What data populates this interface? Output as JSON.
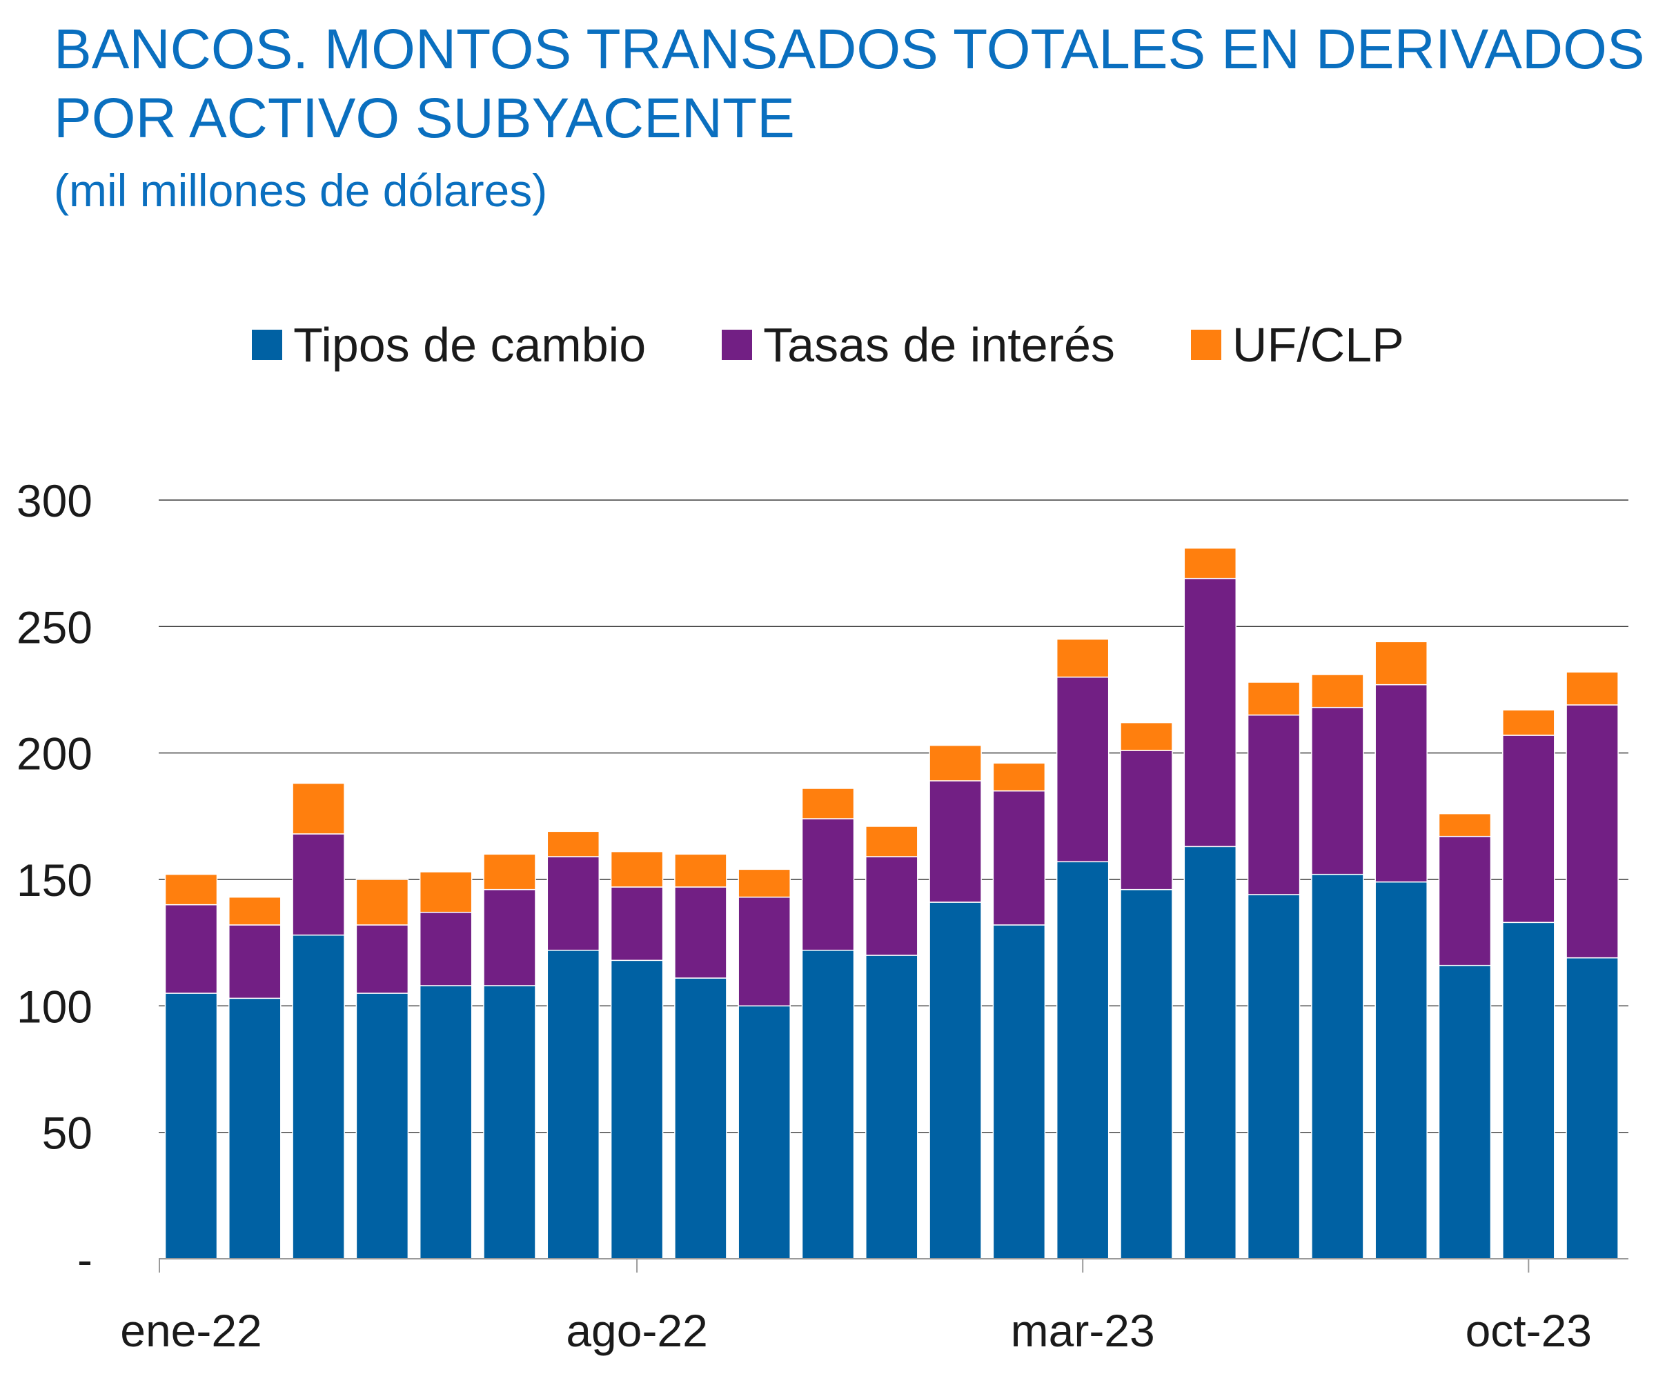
{
  "title_lines": [
    "BANCOS. MONTOS TRANSADOS TOTALES EN DERIVADOS",
    "POR ACTIVO SUBYACENTE"
  ],
  "subtitle": "(mil millones de dólares)",
  "chart_data": {
    "type": "bar",
    "stacked": true,
    "title": "BANCOS. MONTOS TRANSADOS TOTALES EN DERIVADOS POR ACTIVO SUBYACENTE",
    "subtitle": "(mil millones de dólares)",
    "xlabel": "",
    "ylabel": "",
    "ylim": [
      0,
      300
    ],
    "yticks": [
      0,
      50,
      100,
      150,
      200,
      250,
      300
    ],
    "ytick_labels": [
      "-",
      "50",
      "100",
      "150",
      "200",
      "250",
      "300"
    ],
    "grid": "horizontal",
    "legend_position": "top-center",
    "categories": [
      "ene-22",
      "feb-22",
      "mar-22",
      "abr-22",
      "may-22",
      "jun-22",
      "jul-22",
      "ago-22",
      "sep-22",
      "oct-22",
      "nov-22",
      "dic-22",
      "ene-23",
      "feb-23",
      "mar-23",
      "abr-23",
      "may-23",
      "jun-23",
      "jul-23",
      "ago-23",
      "sep-23",
      "oct-23",
      "nov-23"
    ],
    "xtick_labels": [
      {
        "index": 0,
        "label": "ene-22"
      },
      {
        "index": 7,
        "label": "ago-22"
      },
      {
        "index": 14,
        "label": "mar-23"
      },
      {
        "index": 21,
        "label": "oct-23"
      }
    ],
    "series": [
      {
        "name": "Tipos de cambio",
        "color": "#0061a3",
        "values": [
          105,
          103,
          128,
          105,
          108,
          108,
          122,
          118,
          111,
          100,
          122,
          120,
          141,
          132,
          157,
          146,
          163,
          144,
          152,
          149,
          116,
          133,
          119
        ]
      },
      {
        "name": "Tasas de interés",
        "color": "#721f84",
        "values": [
          35,
          29,
          40,
          27,
          29,
          38,
          37,
          29,
          36,
          43,
          52,
          39,
          48,
          53,
          73,
          55,
          106,
          71,
          66,
          78,
          51,
          74,
          100
        ]
      },
      {
        "name": "UF/CLP",
        "color": "#ff7f0e",
        "values": [
          12,
          11,
          20,
          18,
          16,
          14,
          10,
          14,
          13,
          11,
          12,
          12,
          14,
          11,
          15,
          11,
          12,
          13,
          13,
          17,
          9,
          10,
          13
        ]
      }
    ]
  }
}
